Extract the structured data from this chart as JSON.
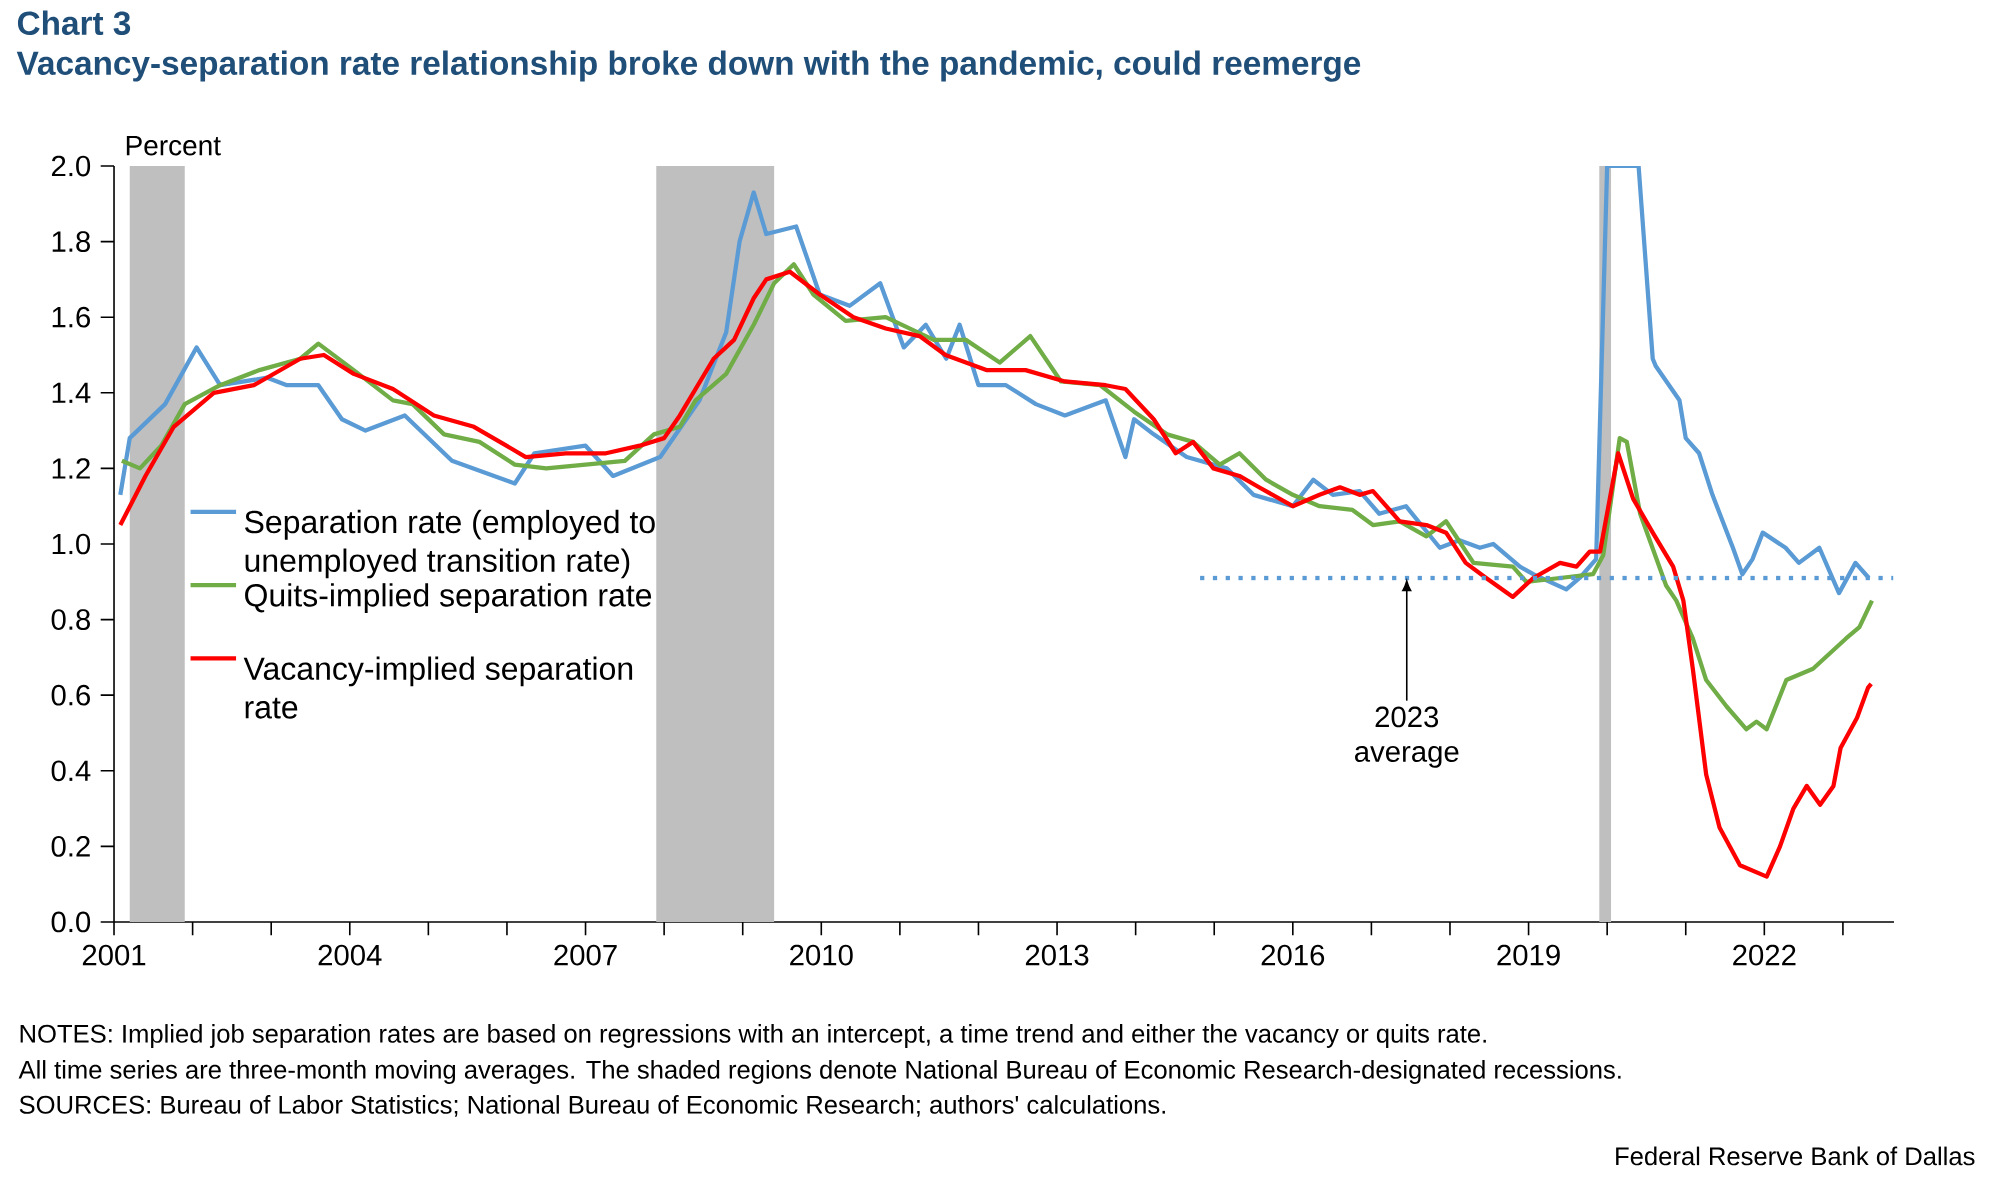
{
  "chart_data": {
    "type": "line",
    "title": "Chart 3",
    "subtitle": "Vacancy-separation rate relationship broke down with the pandemic, could reemerge",
    "ylabel": "Percent",
    "xlim": [
      2001,
      2023.65
    ],
    "ylim": [
      0,
      2.0
    ],
    "xticks": [
      2001,
      {
        "value": 2002,
        "label": null
      },
      {
        "value": 2003,
        "label": null
      },
      2004,
      {
        "value": 2005,
        "label": null
      },
      {
        "value": 2006,
        "label": null
      },
      2007,
      {
        "value": 2008,
        "label": null
      },
      {
        "value": 2009,
        "label": null
      },
      2010,
      {
        "value": 2011,
        "label": null
      },
      {
        "value": 2012,
        "label": null
      },
      2013,
      {
        "value": 2014,
        "label": null
      },
      {
        "value": 2015,
        "label": null
      },
      2016,
      {
        "value": 2017,
        "label": null
      },
      {
        "value": 2018,
        "label": null
      },
      2019,
      {
        "value": 2020,
        "label": null
      },
      {
        "value": 2021,
        "label": null
      },
      2022,
      {
        "value": 2023,
        "label": null
      }
    ],
    "yticks": [
      {
        "value": 0,
        "label": "0.0"
      },
      {
        "value": 0.2,
        "label": "0.2"
      },
      {
        "value": 0.4,
        "label": "0.4"
      },
      {
        "value": 0.6,
        "label": "0.6"
      },
      {
        "value": 0.8,
        "label": "0.8"
      },
      {
        "value": 1.0,
        "label": "1.0"
      },
      {
        "value": 1.2,
        "label": "1.2"
      },
      {
        "value": 1.4,
        "label": "1.4"
      },
      {
        "value": 1.6,
        "label": "1.6"
      },
      {
        "value": 1.8,
        "label": "1.8"
      },
      {
        "value": 2.0,
        "label": "2.0"
      }
    ],
    "grid": false,
    "legend": "left",
    "bands": [
      {
        "axis": "x",
        "from": 2001.2,
        "to": 2001.9,
        "color": "#bfbfbf"
      },
      {
        "axis": "x",
        "from": 2007.9,
        "to": 2009.4,
        "color": "#bfbfbf"
      },
      {
        "axis": "x",
        "from": 2019.9,
        "to": 2020.05,
        "color": "#bfbfbf"
      }
    ],
    "series": [
      {
        "name": "Separation rate (employed to unemployed transition rate)",
        "color": "#5b9bd5",
        "x": [
          2001.08,
          2001.2,
          2001.65,
          2002.05,
          2002.35,
          2002.95,
          2003.2,
          2003.6,
          2003.9,
          2004.2,
          2004.7,
          2005.3,
          2006.1,
          2006.35,
          2007.0,
          2007.35,
          2007.95,
          2008.45,
          2008.79,
          2008.96,
          2009.14,
          2009.3,
          2009.68,
          2009.98,
          2010.36,
          2010.75,
          2011.05,
          2011.33,
          2011.59,
          2011.76,
          2012.0,
          2012.35,
          2012.73,
          2013.1,
          2013.62,
          2013.87,
          2013.98,
          2014.23,
          2014.65,
          2015.16,
          2015.5,
          2016.0,
          2016.26,
          2016.51,
          2016.85,
          2017.1,
          2017.44,
          2017.87,
          2018.12,
          2018.38,
          2018.55,
          2018.89,
          2019.06,
          2019.48,
          2019.65,
          2019.86,
          2020.0,
          2020.4,
          2020.58,
          2020.62,
          2020.92,
          2021.0,
          2021.17,
          2021.34,
          2021.6,
          2021.72,
          2021.85,
          2021.98,
          2022.27,
          2022.44,
          2022.7,
          2022.95,
          2023.16,
          2023.33
        ],
        "values": [
          1.13,
          1.28,
          1.37,
          1.52,
          1.42,
          1.44,
          1.42,
          1.42,
          1.33,
          1.3,
          1.34,
          1.22,
          1.16,
          1.24,
          1.26,
          1.18,
          1.23,
          1.38,
          1.56,
          1.8,
          1.93,
          1.82,
          1.84,
          1.66,
          1.63,
          1.69,
          1.52,
          1.58,
          1.49,
          1.58,
          1.42,
          1.42,
          1.37,
          1.34,
          1.38,
          1.23,
          1.33,
          1.29,
          1.23,
          1.2,
          1.13,
          1.1,
          1.17,
          1.13,
          1.14,
          1.08,
          1.1,
          0.99,
          1.01,
          0.99,
          1.0,
          0.94,
          0.92,
          0.88,
          0.91,
          0.96,
          2.0,
          2.0,
          1.49,
          1.47,
          1.38,
          1.28,
          1.24,
          1.13,
          0.99,
          0.92,
          0.96,
          1.03,
          0.99,
          0.95,
          0.99,
          0.87,
          0.95,
          0.91
        ]
      },
      {
        "name": "Quits-implied separation rate",
        "color": "#70ad47",
        "x": [
          2001.1,
          2001.33,
          2001.6,
          2001.9,
          2002.35,
          2002.85,
          2003.37,
          2003.6,
          2004.05,
          2004.55,
          2004.8,
          2005.2,
          2005.65,
          2006.1,
          2006.5,
          2007.0,
          2007.5,
          2007.87,
          2008.2,
          2008.4,
          2008.79,
          2009.14,
          2009.4,
          2009.65,
          2009.9,
          2010.31,
          2010.82,
          2011.43,
          2011.84,
          2012.27,
          2012.66,
          2013.05,
          2013.55,
          2013.98,
          2014.4,
          2014.73,
          2015.07,
          2015.32,
          2015.66,
          2016.0,
          2016.34,
          2016.76,
          2017.02,
          2017.36,
          2017.7,
          2017.95,
          2018.3,
          2018.8,
          2018.97,
          2019.4,
          2019.82,
          2019.95,
          2020.16,
          2020.25,
          2020.42,
          2020.75,
          2020.88,
          2021.09,
          2021.26,
          2021.52,
          2021.77,
          2021.9,
          2022.03,
          2022.28,
          2022.62,
          2023.04,
          2023.21,
          2023.37
        ],
        "values": [
          1.22,
          1.2,
          1.26,
          1.37,
          1.42,
          1.46,
          1.49,
          1.53,
          1.46,
          1.38,
          1.37,
          1.29,
          1.27,
          1.21,
          1.2,
          1.21,
          1.22,
          1.29,
          1.31,
          1.38,
          1.45,
          1.58,
          1.69,
          1.74,
          1.66,
          1.59,
          1.6,
          1.54,
          1.54,
          1.48,
          1.55,
          1.43,
          1.42,
          1.35,
          1.29,
          1.27,
          1.21,
          1.24,
          1.17,
          1.13,
          1.1,
          1.09,
          1.05,
          1.06,
          1.02,
          1.06,
          0.95,
          0.94,
          0.9,
          0.91,
          0.92,
          0.97,
          1.28,
          1.27,
          1.08,
          0.89,
          0.85,
          0.75,
          0.64,
          0.57,
          0.51,
          0.53,
          0.51,
          0.64,
          0.67,
          0.75,
          0.78,
          0.85
        ]
      },
      {
        "name": "Vacancy-implied separation rate",
        "color": "#ff0000",
        "x": [
          2001.08,
          2001.4,
          2001.76,
          2002.27,
          2002.78,
          2003.37,
          2003.67,
          2004.05,
          2004.55,
          2005.07,
          2005.58,
          2006.24,
          2006.75,
          2007.26,
          2007.69,
          2008.0,
          2008.2,
          2008.63,
          2008.89,
          2009.14,
          2009.3,
          2009.6,
          2009.98,
          2010.41,
          2010.82,
          2011.25,
          2011.58,
          2012.1,
          2012.6,
          2013.1,
          2013.62,
          2013.87,
          2014.23,
          2014.51,
          2014.73,
          2014.99,
          2015.32,
          2015.57,
          2016.0,
          2016.34,
          2016.6,
          2016.85,
          2017.02,
          2017.36,
          2017.7,
          2017.95,
          2018.2,
          2018.46,
          2018.8,
          2019.06,
          2019.4,
          2019.61,
          2019.78,
          2019.91,
          2020.14,
          2020.33,
          2020.58,
          2020.84,
          2020.97,
          2021.09,
          2021.26,
          2021.43,
          2021.69,
          2022.03,
          2022.2,
          2022.37,
          2022.54,
          2022.71,
          2022.88,
          2022.97,
          2023.18,
          2023.32,
          2023.36
        ],
        "values": [
          1.05,
          1.18,
          1.31,
          1.4,
          1.42,
          1.49,
          1.5,
          1.45,
          1.41,
          1.34,
          1.31,
          1.23,
          1.24,
          1.24,
          1.26,
          1.28,
          1.34,
          1.49,
          1.54,
          1.65,
          1.7,
          1.72,
          1.66,
          1.6,
          1.57,
          1.55,
          1.5,
          1.46,
          1.46,
          1.43,
          1.42,
          1.41,
          1.33,
          1.24,
          1.27,
          1.2,
          1.18,
          1.15,
          1.1,
          1.13,
          1.15,
          1.13,
          1.14,
          1.06,
          1.05,
          1.03,
          0.95,
          0.91,
          0.86,
          0.91,
          0.95,
          0.94,
          0.98,
          0.98,
          1.24,
          1.12,
          1.03,
          0.94,
          0.85,
          0.67,
          0.39,
          0.25,
          0.15,
          0.12,
          0.2,
          0.3,
          0.36,
          0.31,
          0.36,
          0.46,
          0.54,
          0.62,
          0.63
        ]
      },
      {
        "color": "#5b9bd5",
        "line_style": "dotted",
        "x": [
          2014.82,
          2023.64
        ],
        "values": [
          0.91,
          0.91
        ]
      }
    ],
    "annotations": [
      {
        "text": "2023 average",
        "x": 2017.45,
        "y": 0.91
      },
      "NOTES: Implied job separation rates are based on regressions with an intercept, a time trend and either the vacancy or quits rate.",
      "All time series are three-month moving averages. The shaded regions denote National Bureau of Economic Research-designated recessions.",
      "SOURCES: Bureau of Labor Statistics; National Bureau of Economic Research; authors' calculations.",
      "Federal Reserve Bank of Dallas"
    ]
  }
}
